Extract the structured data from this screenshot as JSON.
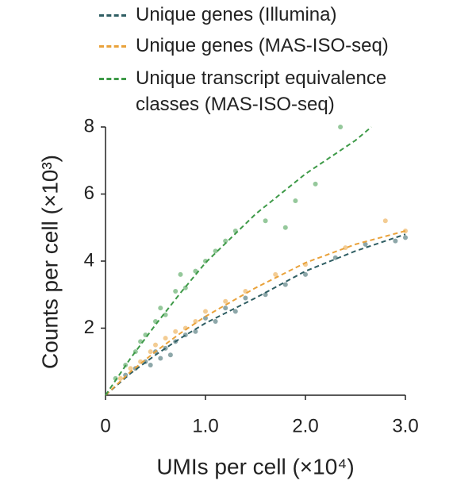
{
  "chart_data": {
    "type": "scatter",
    "x_label": "UMIs per cell (×10⁴)",
    "y_label": "Counts per cell (×10³)",
    "xlim": [
      0,
      3
    ],
    "ylim": [
      0,
      8
    ],
    "xticks": [
      0,
      {
        "value": 1,
        "label": "1.0"
      },
      {
        "value": 2,
        "label": "2.0"
      },
      {
        "value": 3,
        "label": "3.0"
      }
    ],
    "yticks": [
      2,
      4,
      6,
      8
    ],
    "grid": false,
    "fit_line_style": "dashed",
    "series": [
      {
        "name": "Unique genes (Illumina)",
        "color": "#2f5e63",
        "x": [
          0.2,
          0.3,
          0.4,
          0.45,
          0.5,
          0.55,
          0.6,
          0.65,
          0.7,
          0.8,
          0.9,
          1.0,
          1.1,
          1.2,
          1.3,
          1.4,
          1.6,
          1.8,
          2.0,
          2.3,
          2.6,
          2.9,
          3.0
        ],
        "values": [
          0.6,
          0.8,
          1.0,
          0.9,
          1.3,
          1.1,
          1.4,
          1.2,
          1.6,
          1.8,
          1.9,
          2.3,
          2.2,
          2.6,
          2.5,
          2.9,
          3.0,
          3.3,
          3.6,
          4.1,
          4.5,
          4.6,
          4.7
        ],
        "fit": {
          "x": [
            0,
            0.25,
            0.5,
            0.75,
            1,
            1.5,
            2,
            2.5,
            3
          ],
          "values": [
            0,
            0.65,
            1.2,
            1.7,
            2.15,
            2.9,
            3.7,
            4.3,
            4.8
          ]
        }
      },
      {
        "name": "Unique genes (MAS-ISO-seq)",
        "color": "#e9a23b",
        "x": [
          0.15,
          0.25,
          0.35,
          0.45,
          0.5,
          0.6,
          0.7,
          0.8,
          0.9,
          1.0,
          1.2,
          1.4,
          1.7,
          2.0,
          2.4,
          2.8,
          3.0
        ],
        "values": [
          0.5,
          0.8,
          1.0,
          1.3,
          1.5,
          1.7,
          1.9,
          2.0,
          2.2,
          2.5,
          2.8,
          3.1,
          3.6,
          3.9,
          4.4,
          5.2,
          4.9
        ],
        "fit": {
          "x": [
            0,
            0.25,
            0.5,
            0.75,
            1,
            1.5,
            2,
            2.5,
            3
          ],
          "values": [
            0,
            0.7,
            1.3,
            1.85,
            2.35,
            3.2,
            3.95,
            4.5,
            4.9
          ]
        }
      },
      {
        "name": "Unique transcript equivalence classes (MAS-ISO-seq)",
        "color": "#3e9a48",
        "x": [
          0.1,
          0.2,
          0.3,
          0.35,
          0.4,
          0.5,
          0.55,
          0.6,
          0.7,
          0.75,
          0.8,
          0.9,
          1.0,
          1.1,
          1.2,
          1.3,
          1.6,
          1.8,
          1.9,
          2.1,
          2.35
        ],
        "values": [
          0.5,
          0.9,
          1.3,
          1.6,
          1.8,
          2.2,
          2.6,
          2.4,
          3.1,
          3.6,
          3.2,
          3.7,
          4.0,
          4.3,
          4.6,
          4.9,
          5.2,
          5.0,
          5.8,
          6.3,
          8.0
        ],
        "fit": {
          "x": [
            0,
            0.25,
            0.5,
            0.75,
            1,
            1.5,
            2,
            2.5,
            2.66
          ],
          "values": [
            0,
            1.1,
            2.1,
            3.05,
            3.95,
            5.4,
            6.6,
            7.6,
            8
          ]
        }
      }
    ]
  }
}
